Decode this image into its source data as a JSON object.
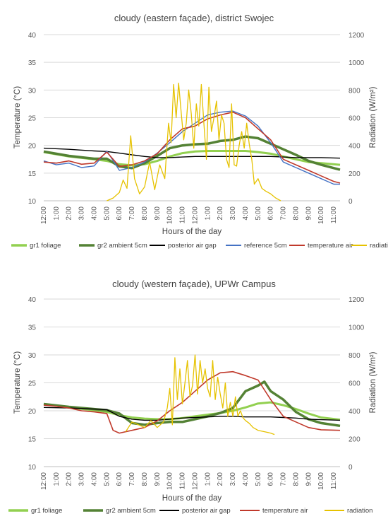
{
  "chart_data": [
    {
      "type": "line",
      "title": "cloudy (eastern façade), district Swojec",
      "xlabel": "Hours of the day",
      "ylabel": "Temperature  (°C)",
      "y2label": "Radiation (W/m²)",
      "ylim": [
        10,
        40
      ],
      "y2lim": [
        0,
        1200
      ],
      "yticks": [
        "10",
        "15",
        "20",
        "25",
        "30",
        "35",
        "40"
      ],
      "y2ticks": [
        "0",
        "200",
        "400",
        "600",
        "800",
        "1000",
        "1200"
      ],
      "x_ticks": [
        "12:00",
        "1:00",
        "2:00",
        "3:00",
        "4:00",
        "5:00",
        "6:00",
        "7:00",
        "8:00",
        "9:00",
        "10:00",
        "11:00",
        "12:00",
        "1:00",
        "2:00",
        "3:00",
        "4:00",
        "5:00",
        "6:00",
        "7:00",
        "8:00",
        "9:00",
        "10:00",
        "11:00"
      ],
      "xlim": [
        0,
        23.5
      ],
      "legend_position": "bottom",
      "series": [
        {
          "name": "gr1 foliage",
          "axis": "left",
          "color": "#92D050",
          "x": [
            0,
            2,
            4,
            5,
            6,
            7,
            8,
            9,
            10,
            11,
            12,
            13,
            14,
            15,
            16,
            17,
            18,
            19,
            20,
            21,
            22,
            23.5
          ],
          "y": [
            18.8,
            18.0,
            17.5,
            17.2,
            16.6,
            16.4,
            16.6,
            17.2,
            18.0,
            18.6,
            18.9,
            19.0,
            19.0,
            19.0,
            19.0,
            18.8,
            18.5,
            18.0,
            17.5,
            17.0,
            16.8,
            16.5
          ]
        },
        {
          "name": "gr2 ambient 5cm",
          "axis": "left",
          "color": "#548235",
          "x": [
            0,
            2,
            4,
            5,
            6,
            7,
            8,
            9,
            10,
            11,
            12,
            13,
            14,
            15,
            16,
            17,
            18,
            19,
            20,
            21,
            22,
            23.5
          ],
          "y": [
            18.9,
            18.1,
            17.6,
            17.6,
            16.2,
            15.9,
            16.8,
            18.1,
            19.5,
            20.0,
            20.2,
            20.3,
            20.8,
            21.0,
            21.6,
            21.3,
            20.3,
            19.3,
            18.3,
            17.2,
            16.5,
            15.6
          ]
        },
        {
          "name": "posterior air gap",
          "axis": "left",
          "color": "#000000",
          "x": [
            0,
            2,
            4,
            5,
            6,
            7,
            8,
            9,
            10,
            11,
            12,
            13,
            14,
            15,
            16,
            17,
            18,
            19,
            20,
            21,
            22,
            23.5
          ],
          "y": [
            19.5,
            19.3,
            19.0,
            18.9,
            18.6,
            18.3,
            18.0,
            17.8,
            17.8,
            17.9,
            18.0,
            18.0,
            18.0,
            18.0,
            18.0,
            18.0,
            18.0,
            17.9,
            17.8,
            17.8,
            17.8,
            17.7
          ]
        },
        {
          "name": "reference 5cm",
          "axis": "left",
          "color": "#4472C4",
          "x": [
            0,
            1,
            2,
            3,
            4,
            5,
            6,
            7,
            8,
            9,
            10,
            11,
            12,
            13,
            14,
            15,
            16,
            17,
            18,
            19,
            20,
            21,
            22,
            23,
            23.5
          ],
          "y": [
            17.2,
            16.5,
            16.8,
            16.0,
            16.3,
            19.0,
            15.5,
            16.0,
            17.0,
            18.6,
            20.5,
            22.5,
            24.0,
            25.5,
            26.0,
            26.2,
            25.3,
            23.5,
            20.5,
            17.0,
            16.0,
            15.0,
            14.0,
            13.0,
            13.0
          ]
        },
        {
          "name": "temperature air",
          "axis": "left",
          "color": "#C0392B",
          "x": [
            0,
            1,
            2,
            3,
            4,
            5,
            6,
            7,
            8,
            9,
            10,
            11,
            12,
            13,
            14,
            15,
            16,
            17,
            18,
            19,
            20,
            21,
            22,
            23,
            23.5
          ],
          "y": [
            17.0,
            16.8,
            17.2,
            16.6,
            16.8,
            18.8,
            16.2,
            16.5,
            17.2,
            18.5,
            21.0,
            23.0,
            23.5,
            24.8,
            25.5,
            26.0,
            25.0,
            23.0,
            21.0,
            17.5,
            16.5,
            15.5,
            14.5,
            13.5,
            13.2
          ]
        },
        {
          "name": "radiation",
          "axis": "right",
          "color": "#E6C200",
          "x": [
            5,
            5.5,
            6.0,
            6.3,
            6.6,
            6.9,
            7.2,
            7.6,
            8.0,
            8.4,
            8.8,
            9.2,
            9.6,
            9.9,
            10.1,
            10.3,
            10.5,
            10.7,
            10.9,
            11.1,
            11.3,
            11.5,
            11.7,
            11.9,
            12.1,
            12.3,
            12.5,
            12.7,
            12.9,
            13.1,
            13.3,
            13.5,
            13.7,
            13.9,
            14.1,
            14.3,
            14.5,
            14.7,
            14.9,
            15.1,
            15.3,
            15.5,
            15.7,
            15.9,
            16.1,
            16.3,
            16.5,
            16.7,
            17.0,
            17.3,
            17.6,
            18.0,
            18.4,
            18.8
          ],
          "y": [
            0,
            20,
            60,
            150,
            90,
            470,
            160,
            50,
            100,
            280,
            80,
            260,
            160,
            560,
            420,
            840,
            600,
            850,
            640,
            440,
            560,
            800,
            630,
            380,
            700,
            540,
            840,
            560,
            300,
            820,
            500,
            600,
            720,
            440,
            620,
            560,
            300,
            240,
            700,
            260,
            250,
            400,
            500,
            380,
            560,
            410,
            300,
            120,
            160,
            90,
            70,
            50,
            20,
            0
          ]
        }
      ]
    },
    {
      "type": "line",
      "title": "cloudy (western façade), UPWr Campus",
      "xlabel": "Hours of the day",
      "ylabel": "Temperature  (°C)",
      "y2label": "Radiation (W/m²)",
      "ylim": [
        10,
        40
      ],
      "y2lim": [
        0,
        1200
      ],
      "yticks": [
        "10",
        "15",
        "20",
        "25",
        "30",
        "35",
        "40"
      ],
      "y2ticks": [
        "0",
        "200",
        "400",
        "600",
        "800",
        "1000",
        "1200"
      ],
      "x_ticks": [
        "12:00",
        "1:00",
        "2:00",
        "3:00",
        "4:00",
        "5:00",
        "6:00",
        "7:00",
        "8:00",
        "9:00",
        "10:00",
        "11:00",
        "12:00",
        "1:00",
        "2:00",
        "3:00",
        "4:00",
        "5:00",
        "6:00",
        "7:00",
        "8:00",
        "9:00",
        "10:00",
        "11:00"
      ],
      "xlim": [
        0,
        23.5
      ],
      "legend_position": "bottom",
      "series": [
        {
          "name": "gr1 foliage",
          "axis": "left",
          "color": "#92D050",
          "x": [
            0,
            2,
            4,
            5,
            6,
            7,
            8,
            9,
            10,
            11,
            12,
            13,
            14,
            15,
            16,
            17,
            18,
            19,
            20,
            21,
            22,
            23.5
          ],
          "y": [
            21.2,
            20.6,
            20.1,
            19.8,
            19.2,
            18.8,
            18.6,
            18.5,
            18.5,
            18.7,
            19.0,
            19.3,
            19.6,
            20.0,
            20.6,
            21.3,
            21.5,
            21.0,
            20.3,
            19.5,
            18.8,
            18.4
          ]
        },
        {
          "name": "gr2 ambient 5cm",
          "axis": "left",
          "color": "#548235",
          "x": [
            0,
            2,
            4,
            5,
            6,
            7,
            8,
            9,
            10,
            11,
            12,
            13,
            14,
            15,
            16,
            17,
            17.5,
            18,
            19,
            20,
            21,
            22,
            23.5
          ],
          "y": [
            21.2,
            20.7,
            20.3,
            20.1,
            19.5,
            17.8,
            17.5,
            17.8,
            18.0,
            18.0,
            18.5,
            19.0,
            19.6,
            20.5,
            23.5,
            24.5,
            25.2,
            23.5,
            22.0,
            19.8,
            18.5,
            17.8,
            17.3
          ]
        },
        {
          "name": "posterior air gap",
          "axis": "left",
          "color": "#000000",
          "x": [
            0,
            2,
            4,
            5,
            6,
            7,
            8,
            9,
            10,
            11,
            12,
            13,
            14,
            15,
            16,
            17,
            18,
            19,
            20,
            21,
            22,
            23.5
          ],
          "y": [
            20.6,
            20.5,
            20.3,
            20.2,
            19.0,
            18.5,
            18.3,
            18.3,
            18.5,
            18.7,
            18.8,
            18.9,
            19.0,
            19.0,
            18.9,
            18.9,
            18.9,
            18.8,
            18.7,
            18.5,
            18.4,
            18.3
          ]
        },
        {
          "name": "temperature air",
          "axis": "left",
          "color": "#C0392B",
          "x": [
            0,
            1,
            2,
            3,
            4,
            5,
            5.5,
            6,
            7,
            8,
            9,
            10,
            11,
            12,
            13,
            14,
            15,
            16,
            17,
            18,
            19,
            20,
            21,
            22,
            23.5
          ],
          "y": [
            21.0,
            20.8,
            20.5,
            20.0,
            19.8,
            19.5,
            16.5,
            16.0,
            16.5,
            17.0,
            18.2,
            20.0,
            21.5,
            23.5,
            25.5,
            26.8,
            27.0,
            26.3,
            25.5,
            22.0,
            19.0,
            18.0,
            17.0,
            16.6,
            16.5
          ]
        },
        {
          "name": "radiation",
          "axis": "right",
          "color": "#E6C200",
          "x": [
            6.5,
            7.0,
            7.5,
            8.0,
            8.5,
            9.0,
            9.5,
            9.8,
            10.0,
            10.2,
            10.4,
            10.6,
            10.8,
            11.0,
            11.2,
            11.4,
            11.6,
            11.8,
            12.0,
            12.2,
            12.4,
            12.6,
            12.8,
            13.0,
            13.2,
            13.4,
            13.6,
            13.8,
            14.0,
            14.2,
            14.4,
            14.6,
            14.8,
            15.0,
            15.2,
            15.4,
            15.6,
            15.8,
            16.0,
            16.3,
            16.6,
            17.0,
            17.5,
            18.0,
            18.3
          ],
          "y": [
            250,
            320,
            300,
            280,
            330,
            280,
            320,
            420,
            560,
            300,
            780,
            480,
            700,
            450,
            600,
            760,
            500,
            580,
            800,
            520,
            760,
            600,
            700,
            560,
            500,
            760,
            480,
            640,
            520,
            420,
            600,
            360,
            460,
            360,
            500,
            360,
            400,
            350,
            330,
            310,
            280,
            260,
            250,
            240,
            230
          ]
        }
      ]
    }
  ]
}
